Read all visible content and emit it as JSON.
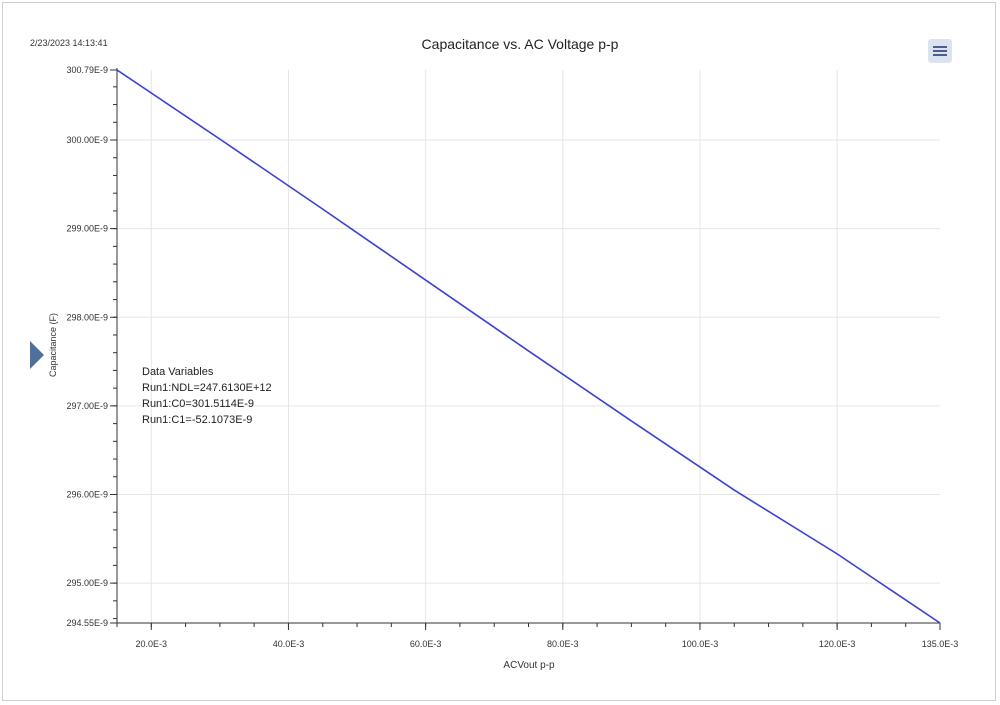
{
  "header": {
    "timestamp": "2/23/2023 14:13:41",
    "menu_icon": "hamburger-menu-icon",
    "side_toggle_icon": "triangle-right-icon"
  },
  "colors": {
    "series": "#3a3fd8",
    "grid": "#e6e6e6",
    "axis": "#333333",
    "toggle": "#4f6f9c"
  },
  "chart_data": {
    "type": "line",
    "title": "Capacitance vs. AC Voltage p-p",
    "xlabel": "ACVout p-p",
    "ylabel": "Capacitance (F)",
    "xlim": [
      0.015,
      0.135
    ],
    "ylim": [
      2.9455e-07,
      3.0079e-07
    ],
    "grid": true,
    "x_ticks": [
      {
        "value": 0.02,
        "label": "20.0E-3"
      },
      {
        "value": 0.04,
        "label": "40.0E-3"
      },
      {
        "value": 0.06,
        "label": "60.0E-3"
      },
      {
        "value": 0.08,
        "label": "80.0E-3"
      },
      {
        "value": 0.1,
        "label": "100.0E-3"
      },
      {
        "value": 0.12,
        "label": "120.0E-3"
      },
      {
        "value": 0.135,
        "label": "135.0E-3"
      }
    ],
    "y_ticks": [
      {
        "value": 3.0079e-07,
        "label": "300.79E-9"
      },
      {
        "value": 3e-07,
        "label": "300.00E-9"
      },
      {
        "value": 2.99e-07,
        "label": "299.00E-9"
      },
      {
        "value": 2.98e-07,
        "label": "298.00E-9"
      },
      {
        "value": 2.97e-07,
        "label": "297.00E-9"
      },
      {
        "value": 2.96e-07,
        "label": "296.00E-9"
      },
      {
        "value": 2.95e-07,
        "label": "295.00E-9"
      },
      {
        "value": 2.9455e-07,
        "label": "294.55E-9"
      }
    ],
    "series": [
      {
        "x": [
          0.015,
          0.03,
          0.045,
          0.06,
          0.075,
          0.09,
          0.105,
          0.12,
          0.135
        ],
        "y": [
          3.0079e-07,
          3.0001e-07,
          2.9922e-07,
          2.9842e-07,
          2.9762e-07,
          2.9683e-07,
          2.9605e-07,
          2.9533e-07,
          2.9455e-07
        ]
      }
    ],
    "annotation": {
      "title": "Data Variables",
      "lines": [
        "Run1:NDL=247.6130E+12",
        "Run1:C0=301.5114E-9",
        "Run1:C1=-52.1073E-9"
      ]
    }
  }
}
